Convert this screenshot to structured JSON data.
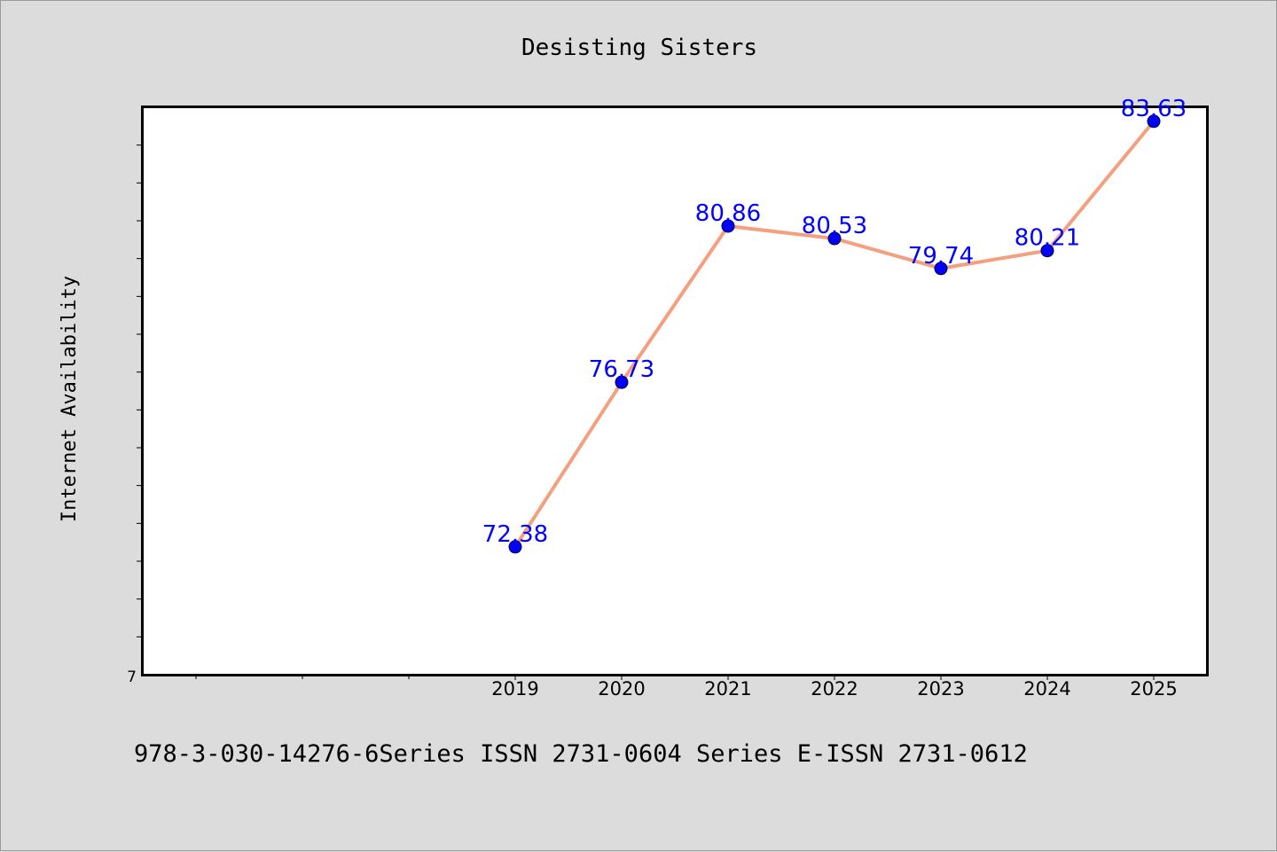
{
  "chart_data": {
    "type": "line",
    "title": "Desisting Sisters",
    "ylabel": "Internet Availability",
    "xlabel": "",
    "x": [
      "2019",
      "2020",
      "2021",
      "2022",
      "2023",
      "2024",
      "2025"
    ],
    "series": [
      {
        "values": [
          72.38,
          76.73,
          80.86,
          80.53,
          79.74,
          80.21,
          83.63
        ]
      }
    ],
    "y_tick_labels": [
      "7"
    ],
    "ylim": [
      69.0,
      84.0
    ],
    "grid": false,
    "line_color": "#f4a07f",
    "marker_color": "#0000ff",
    "label_color": "#0000ff",
    "plot_background": "#ffffff",
    "page_background": "#dcdcdc"
  },
  "footer": {
    "text": "978-3-030-14276-6Series ISSN 2731-0604 Series E-ISSN 2731-0612"
  }
}
